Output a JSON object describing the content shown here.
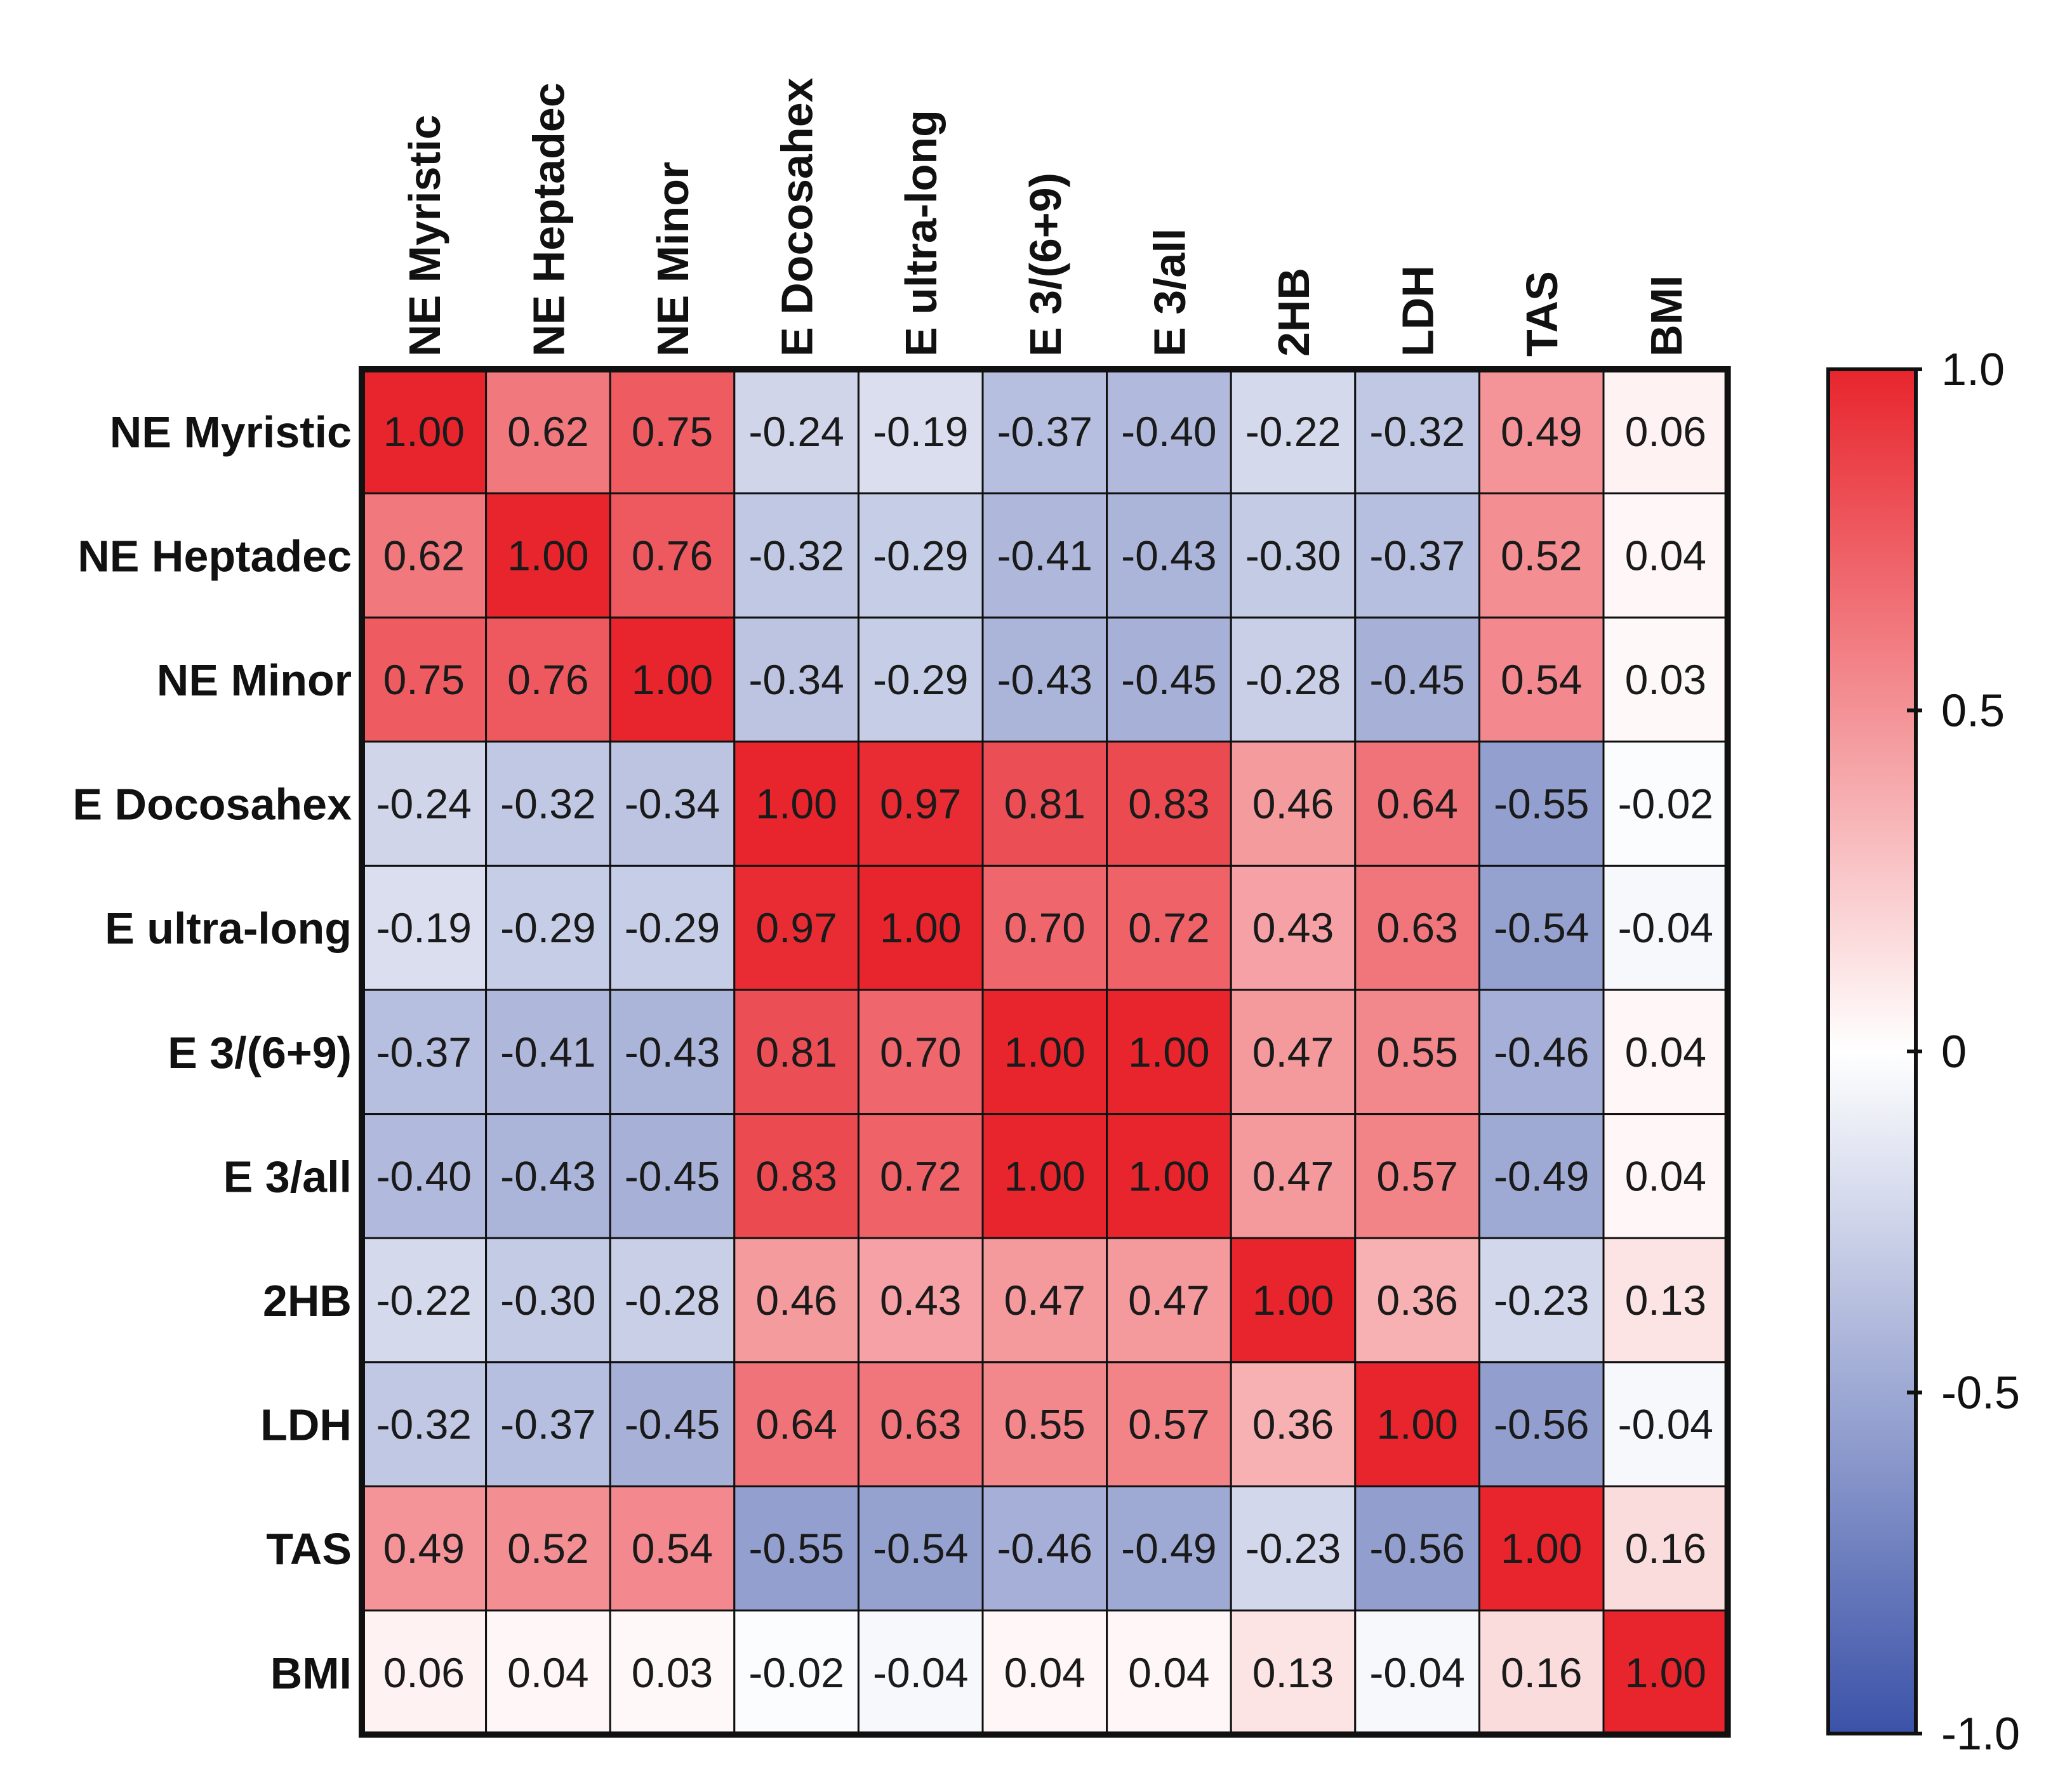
{
  "chart_data": {
    "type": "heatmap",
    "rows": [
      "NE Myristic",
      "NE Heptadec",
      "NE Minor",
      "E Docosahex",
      "E ultra-long",
      "E 3/(6+9)",
      "E 3/all",
      "2HB",
      "LDH",
      "TAS",
      "BMI"
    ],
    "columns": [
      "NE Myristic",
      "NE Heptadec",
      "NE Minor",
      "E Docosahex",
      "E ultra-long",
      "E 3/(6+9)",
      "E 3/all",
      "2HB",
      "LDH",
      "TAS",
      "BMI"
    ],
    "values": [
      [
        1.0,
        0.62,
        0.75,
        -0.24,
        -0.19,
        -0.37,
        -0.4,
        -0.22,
        -0.32,
        0.49,
        0.06
      ],
      [
        0.62,
        1.0,
        0.76,
        -0.32,
        -0.29,
        -0.41,
        -0.43,
        -0.3,
        -0.37,
        0.52,
        0.04
      ],
      [
        0.75,
        0.76,
        1.0,
        -0.34,
        -0.29,
        -0.43,
        -0.45,
        -0.28,
        -0.45,
        0.54,
        0.03
      ],
      [
        -0.24,
        -0.32,
        -0.34,
        1.0,
        0.97,
        0.81,
        0.83,
        0.46,
        0.64,
        -0.55,
        -0.02
      ],
      [
        -0.19,
        -0.29,
        -0.29,
        0.97,
        1.0,
        0.7,
        0.72,
        0.43,
        0.63,
        -0.54,
        -0.04
      ],
      [
        -0.37,
        -0.41,
        -0.43,
        0.81,
        0.7,
        1.0,
        1.0,
        0.47,
        0.55,
        -0.46,
        0.04
      ],
      [
        -0.4,
        -0.43,
        -0.45,
        0.83,
        0.72,
        1.0,
        1.0,
        0.47,
        0.57,
        -0.49,
        0.04
      ],
      [
        -0.22,
        -0.3,
        -0.28,
        0.46,
        0.43,
        0.47,
        0.47,
        1.0,
        0.36,
        -0.23,
        0.13
      ],
      [
        -0.32,
        -0.37,
        -0.45,
        0.64,
        0.63,
        0.55,
        0.57,
        0.36,
        1.0,
        -0.56,
        -0.04
      ],
      [
        0.49,
        0.52,
        0.54,
        -0.55,
        -0.54,
        -0.46,
        -0.49,
        -0.23,
        -0.56,
        1.0,
        0.16
      ],
      [
        0.06,
        0.04,
        0.03,
        -0.02,
        -0.04,
        0.04,
        0.04,
        0.13,
        -0.04,
        0.16,
        1.0
      ]
    ],
    "value_range": [
      -1.0,
      1.0
    ],
    "colorbar": {
      "ticks": [
        "1.0",
        "0.5",
        "0",
        "-0.5",
        "-1.0"
      ],
      "tick_values": [
        1.0,
        0.5,
        0,
        -0.5,
        -1.0
      ],
      "colors": {
        "min": "#3b52a8",
        "mid": "#ffffff",
        "max": "#e8252d"
      }
    },
    "title": "",
    "xlabel": "",
    "ylabel": ""
  }
}
